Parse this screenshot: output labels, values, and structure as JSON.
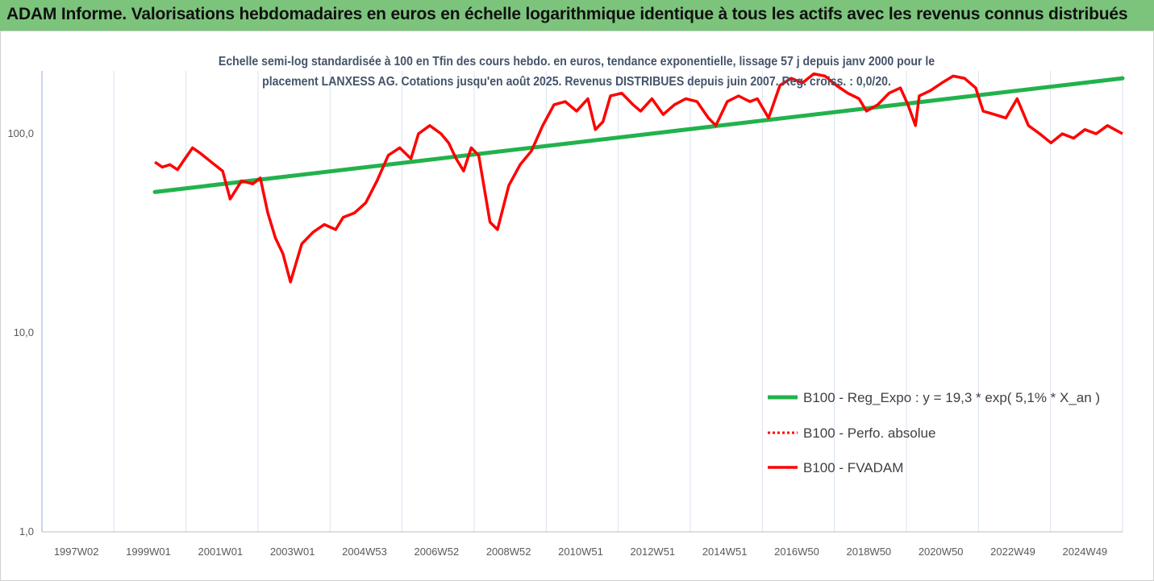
{
  "banner": {
    "title": "ADAM Informe. Valorisations hebdomadaires en euros en échelle logarithmique identique à tous les actifs avec les revenus connus distribués"
  },
  "chart_data": {
    "type": "line",
    "title_lines": [
      "Echelle semi-log standardisée à 100 en Tfin des cours hebdo. en euros, tendance exponentielle, lissage 57 j depuis janv 2000 pour le",
      "placement LANXESS AG. Cotations jusqu'en août 2025. Revenus DISTRIBUES depuis juin 2007. Reg. croiss. : 0,0/20."
    ],
    "y_scale": "log",
    "ylim": [
      1,
      200
    ],
    "y_ticks": [
      "1,0",
      "10,0",
      "100,0"
    ],
    "x_tick_labels": [
      "1997W02",
      "1999W01",
      "2001W01",
      "2003W01",
      "2004W53",
      "2006W52",
      "2008W52",
      "2010W51",
      "2012W51",
      "2014W51",
      "2016W50",
      "2018W50",
      "2020W50",
      "2022W49",
      "2024W49"
    ],
    "xlim": [
      1997.0,
      2025.7
    ],
    "grid": "vertical",
    "legend_position": "lower-right",
    "series": [
      {
        "name": "B100 - Reg_Expo : y = 19,3 * exp( 5,1% *  X_an )",
        "color": "#22b24c",
        "style": "solid",
        "x": [
          2000.0,
          2025.7
        ],
        "y": [
          51,
          190
        ]
      },
      {
        "name": "B100 - Perfo. absolue",
        "color": "#ff0000",
        "style": "dotted",
        "x": [],
        "y": []
      },
      {
        "name": "B100 - FVADAM",
        "color": "#ff0000",
        "style": "solid",
        "x": [
          2000.0,
          2000.2,
          2000.4,
          2000.6,
          2000.8,
          2001.0,
          2001.2,
          2001.5,
          2001.8,
          2002.0,
          2002.3,
          2002.6,
          2002.8,
          2003.0,
          2003.2,
          2003.4,
          2003.6,
          2003.9,
          2004.2,
          2004.5,
          2004.8,
          2005.0,
          2005.3,
          2005.6,
          2005.9,
          2006.2,
          2006.5,
          2006.8,
          2007.0,
          2007.3,
          2007.6,
          2007.8,
          2008.0,
          2008.2,
          2008.4,
          2008.6,
          2008.9,
          2009.1,
          2009.4,
          2009.7,
          2010.0,
          2010.3,
          2010.6,
          2010.9,
          2011.2,
          2011.5,
          2011.7,
          2011.9,
          2012.1,
          2012.4,
          2012.7,
          2012.9,
          2013.2,
          2013.5,
          2013.8,
          2014.1,
          2014.4,
          2014.7,
          2014.9,
          2015.2,
          2015.5,
          2015.8,
          2016.0,
          2016.3,
          2016.6,
          2016.9,
          2017.2,
          2017.5,
          2017.8,
          2018.1,
          2018.4,
          2018.7,
          2018.9,
          2019.2,
          2019.5,
          2019.8,
          2020.0,
          2020.2,
          2020.3,
          2020.6,
          2020.9,
          2021.2,
          2021.5,
          2021.8,
          2022.0,
          2022.3,
          2022.6,
          2022.9,
          2023.2,
          2023.5,
          2023.8,
          2024.1,
          2024.4,
          2024.7,
          2025.0,
          2025.3,
          2025.7
        ],
        "y": [
          72,
          68,
          70,
          66,
          75,
          85,
          80,
          72,
          65,
          47,
          58,
          56,
          60,
          40,
          30,
          25,
          18,
          28,
          32,
          35,
          33,
          38,
          40,
          45,
          58,
          78,
          85,
          75,
          100,
          110,
          100,
          90,
          75,
          65,
          85,
          78,
          36,
          33,
          55,
          70,
          82,
          110,
          140,
          145,
          130,
          150,
          105,
          115,
          155,
          160,
          140,
          130,
          150,
          125,
          140,
          150,
          145,
          120,
          110,
          145,
          155,
          145,
          150,
          120,
          175,
          190,
          180,
          200,
          195,
          175,
          160,
          150,
          130,
          140,
          160,
          170,
          140,
          110,
          155,
          165,
          180,
          195,
          190,
          170,
          130,
          125,
          120,
          150,
          110,
          100,
          90,
          100,
          95,
          105,
          100,
          110,
          100
        ]
      }
    ]
  }
}
